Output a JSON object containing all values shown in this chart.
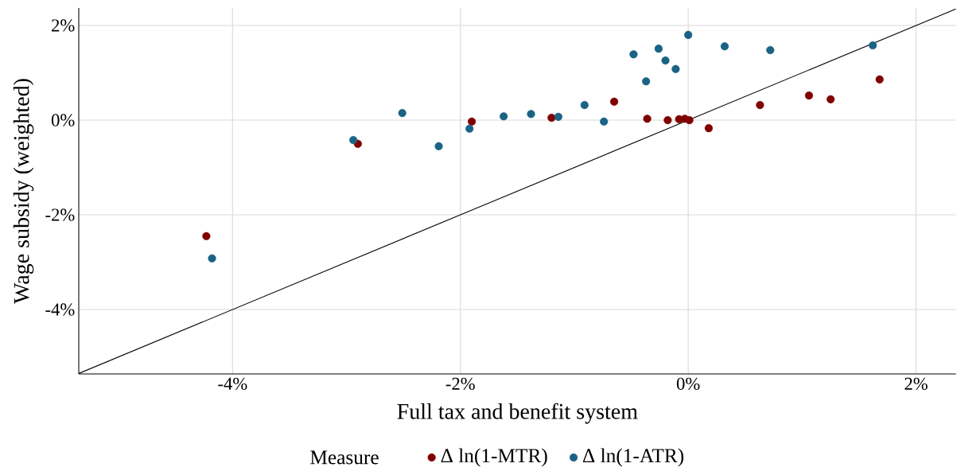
{
  "chart_data": {
    "type": "scatter",
    "xlabel": "Full tax and benefit system",
    "ylabel": "Wage subsidy (weighted)",
    "legend_title": "Measure",
    "legend": "bottom",
    "grid": true,
    "marker": "circle",
    "xlim": [
      -5.35,
      2.35
    ],
    "ylim": [
      -5.36,
      2.37
    ],
    "xticks": [
      {
        "value": -4,
        "label": "-4%"
      },
      {
        "value": -2,
        "label": "-2%"
      },
      {
        "value": 0,
        "label": "0%"
      },
      {
        "value": 2,
        "label": "2%"
      }
    ],
    "yticks": [
      {
        "value": -4,
        "label": "-4%"
      },
      {
        "value": -2,
        "label": "-2%"
      },
      {
        "value": 0,
        "label": "0%"
      },
      {
        "value": 2,
        "label": "2%"
      }
    ],
    "series": [
      {
        "name": "Δ ln(1-MTR)",
        "color": "#800000",
        "x": [
          -4.23,
          -2.9,
          -1.9,
          -1.2,
          -0.65,
          -0.36,
          -0.18,
          -0.08,
          -0.03,
          0.01,
          0.18,
          0.63,
          1.06,
          1.25,
          1.68
        ],
        "values": [
          -2.45,
          -0.5,
          -0.03,
          0.05,
          0.39,
          0.03,
          0.0,
          0.02,
          0.03,
          0.0,
          -0.17,
          0.32,
          0.52,
          0.44,
          0.86
        ]
      },
      {
        "name": "Δ ln(1-ATR)",
        "color": "#1a6385",
        "x": [
          -4.18,
          -2.94,
          -2.51,
          -2.19,
          -1.92,
          -1.62,
          -1.38,
          -1.14,
          -0.91,
          -0.74,
          -0.48,
          -0.37,
          -0.26,
          -0.2,
          -0.11,
          0.0,
          0.32,
          0.72,
          1.62
        ],
        "values": [
          -2.92,
          -0.42,
          0.15,
          -0.55,
          -0.18,
          0.08,
          0.13,
          0.07,
          0.32,
          -0.03,
          1.39,
          0.82,
          1.51,
          1.26,
          1.08,
          1.8,
          1.56,
          1.48,
          1.58
        ]
      },
      {
        "type": "line",
        "marker": "none",
        "color": "#000000",
        "x": [
          -5.35,
          2.35
        ],
        "values": [
          -5.35,
          2.35
        ]
      }
    ]
  }
}
